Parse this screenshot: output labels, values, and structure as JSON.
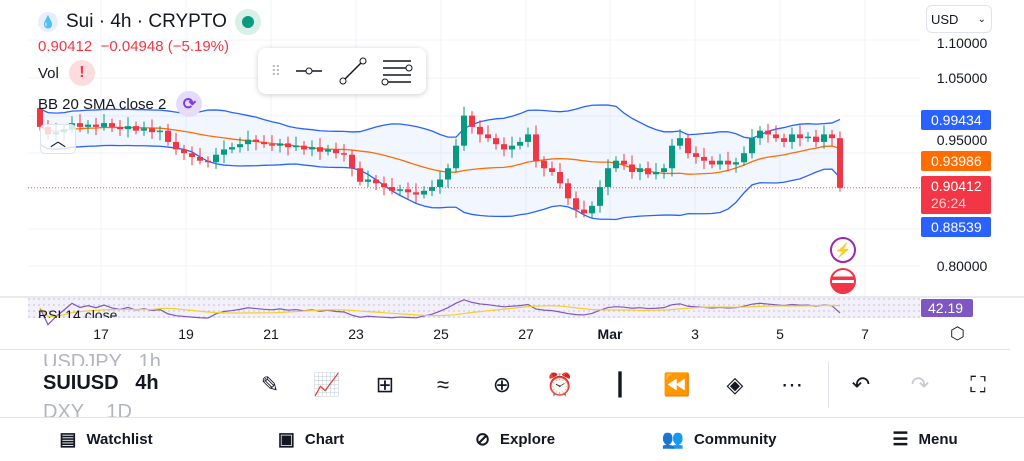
{
  "header": {
    "symbol_title": "Sui · 4h · CRYPTO",
    "price": "0.90412",
    "change": "−0.04948 (−5.19%)",
    "currency": "USD"
  },
  "indicators": {
    "vol": "Vol",
    "bb": "BB 20 SMA close 2",
    "rsi": "RSI 14 close"
  },
  "price_axis": {
    "labels": [
      "1.10000",
      "1.05000",
      "0.95000",
      "0.80000"
    ],
    "tags": {
      "bb_upper": "0.99434",
      "bb_basis": "0.93986",
      "last": "0.90412",
      "countdown": "26:24",
      "bb_lower": "0.88539",
      "rsi": "42.19"
    }
  },
  "time_axis": [
    "17",
    "19",
    "21",
    "23",
    "25",
    "27",
    "Mar",
    "3",
    "5",
    "7"
  ],
  "colors": {
    "up": "#089981",
    "down": "#f23645",
    "bb_band": "#2962ff",
    "bb_basis": "#ff6d00",
    "rsi": "#7e57c2",
    "rsi_ma": "#f2d12a"
  },
  "chart_data": {
    "type": "candlestick",
    "first_open": 1.01,
    "closes": [
      0.985,
      0.975,
      0.978,
      0.982,
      0.99,
      0.985,
      0.988,
      0.985,
      0.99,
      0.985,
      0.982,
      0.986,
      0.98,
      0.983,
      0.978,
      0.98,
      0.965,
      0.955,
      0.95,
      0.945,
      0.94,
      0.938,
      0.948,
      0.955,
      0.958,
      0.962,
      0.968,
      0.965,
      0.962,
      0.96,
      0.963,
      0.958,
      0.96,
      0.955,
      0.958,
      0.952,
      0.955,
      0.95,
      0.948,
      0.93,
      0.912,
      0.915,
      0.91,
      0.905,
      0.9,
      0.902,
      0.898,
      0.895,
      0.9,
      0.905,
      0.915,
      0.93,
      0.96,
      1.0,
      0.985,
      0.975,
      0.97,
      0.962,
      0.955,
      0.96,
      0.965,
      0.975,
      0.94,
      0.93,
      0.925,
      0.91,
      0.89,
      0.875,
      0.87,
      0.88,
      0.905,
      0.93,
      0.94,
      0.935,
      0.925,
      0.93,
      0.922,
      0.925,
      0.93,
      0.96,
      0.97,
      0.95,
      0.945,
      0.94,
      0.935,
      0.94,
      0.935,
      0.938,
      0.95,
      0.97,
      0.98,
      0.975,
      0.97,
      0.965,
      0.975,
      0.97,
      0.972,
      0.965,
      0.975,
      0.97,
      0.904
    ]
  },
  "watchlist": [
    {
      "symbol": "USDJPY",
      "interval": "1h"
    },
    {
      "symbol": "SUIUSD",
      "interval": "4h"
    },
    {
      "symbol": "DXY",
      "interval": "1D"
    }
  ],
  "bottom_nav": [
    "Watchlist",
    "Chart",
    "Explore",
    "Community",
    "Menu"
  ]
}
